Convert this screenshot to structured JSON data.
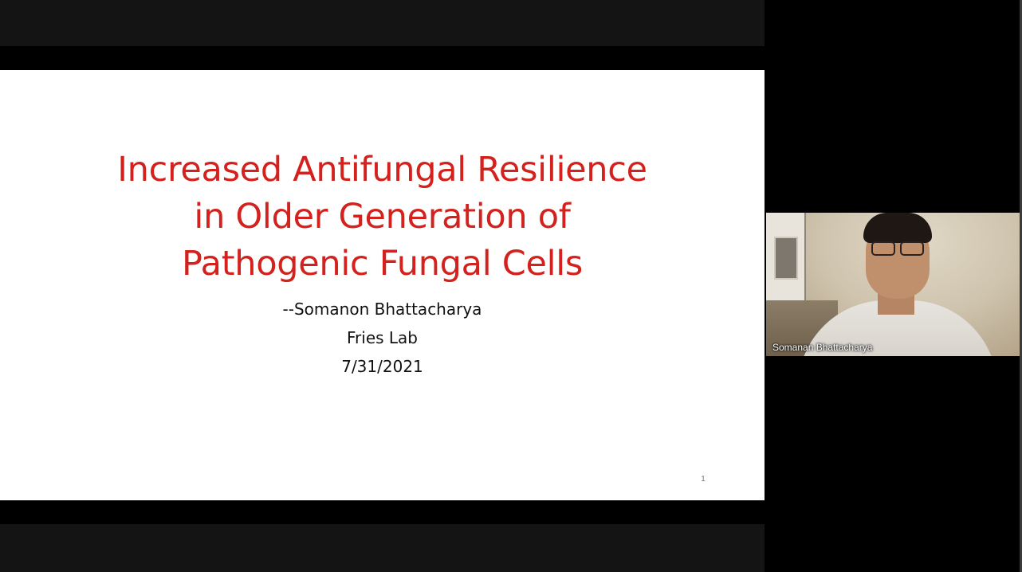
{
  "slide": {
    "title_lines": [
      "Increased Antifungal Resilience",
      "in Older Generation of",
      "Pathogenic Fungal Cells"
    ],
    "subtitle_lines": [
      "--Somanon Bhattacharya",
      "Fries Lab",
      "7/31/2021"
    ],
    "page_number": "1",
    "title_color": "#d3211e"
  },
  "video": {
    "participant_name": "Somanan Bhattacharya"
  }
}
